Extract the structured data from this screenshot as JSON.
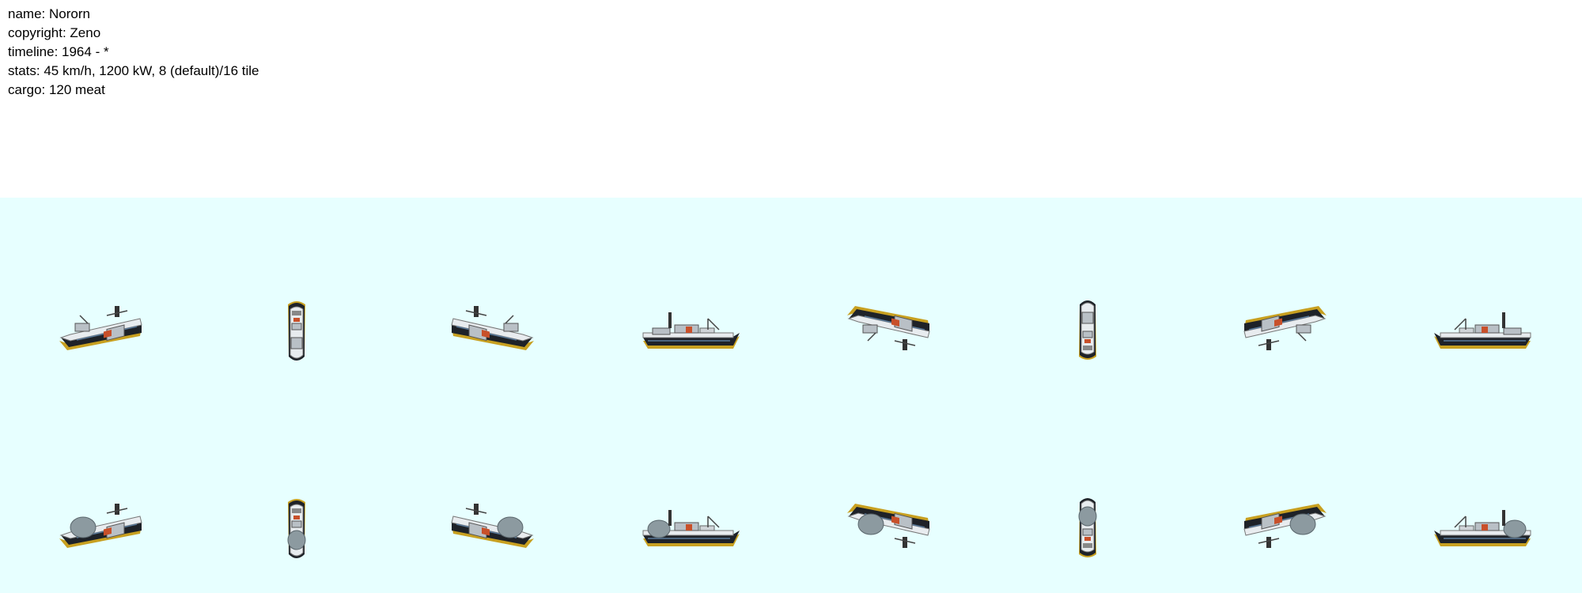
{
  "info": {
    "name": "name: Nororn",
    "copyright": "copyright: Zeno",
    "timeline": "timeline: 1964 - *",
    "stats": "stats: 45 km/h, 1200 kW, 8 (default)/16 tile",
    "cargo": "cargo: 120  meat"
  },
  "colors": {
    "sprite_background": "#e7ffff",
    "hull": "#1e2228",
    "hull_stripe": "#c8a020",
    "deck": "#e8ecef",
    "superstructure": "#b9c0c6",
    "accent": "#c8502a",
    "cargo_dome": "#8c9aa0"
  },
  "rows": [
    {
      "row_name": "empty",
      "sprites": [
        {
          "direction": "south-west",
          "icon": "ship-sw-icon",
          "loaded": false
        },
        {
          "direction": "south",
          "icon": "ship-s-icon",
          "loaded": false
        },
        {
          "direction": "south-east",
          "icon": "ship-se-icon",
          "loaded": false
        },
        {
          "direction": "east",
          "icon": "ship-e-icon",
          "loaded": false
        },
        {
          "direction": "north-east",
          "icon": "ship-ne-icon",
          "loaded": false
        },
        {
          "direction": "north",
          "icon": "ship-n-icon",
          "loaded": false
        },
        {
          "direction": "north-west",
          "icon": "ship-nw-icon",
          "loaded": false
        },
        {
          "direction": "west",
          "icon": "ship-w-icon",
          "loaded": false
        }
      ]
    },
    {
      "row_name": "loaded",
      "sprites": [
        {
          "direction": "south-west",
          "icon": "ship-sw-icon",
          "loaded": true
        },
        {
          "direction": "south",
          "icon": "ship-s-icon",
          "loaded": true
        },
        {
          "direction": "south-east",
          "icon": "ship-se-icon",
          "loaded": true
        },
        {
          "direction": "east",
          "icon": "ship-e-icon",
          "loaded": true
        },
        {
          "direction": "north-east",
          "icon": "ship-ne-icon",
          "loaded": true
        },
        {
          "direction": "north",
          "icon": "ship-n-icon",
          "loaded": true
        },
        {
          "direction": "north-west",
          "icon": "ship-nw-icon",
          "loaded": true
        },
        {
          "direction": "west",
          "icon": "ship-w-icon",
          "loaded": true
        }
      ]
    }
  ]
}
